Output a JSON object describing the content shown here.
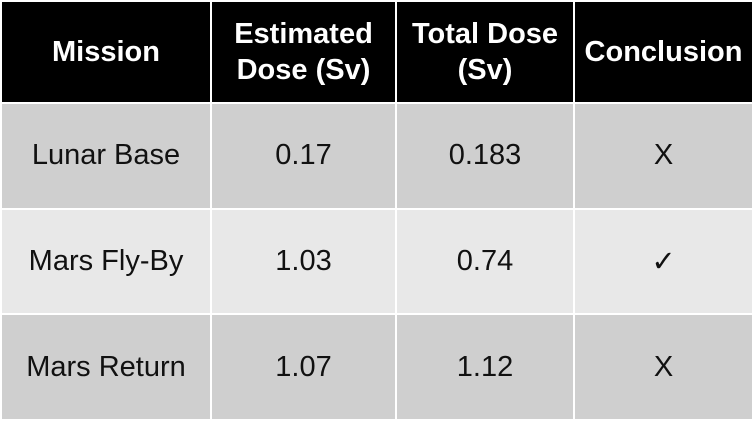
{
  "table": {
    "header": [
      "Mission",
      "Estimated Dose (Sv)",
      "Total Dose (Sv)",
      "Conclusion"
    ],
    "rows": [
      [
        "Lunar Base",
        "0.17",
        "0.183",
        "X"
      ],
      [
        "Mars Fly-By",
        "1.03",
        "0.74",
        "✓"
      ],
      [
        "Mars Return",
        "1.07",
        "1.12",
        "X"
      ]
    ]
  }
}
